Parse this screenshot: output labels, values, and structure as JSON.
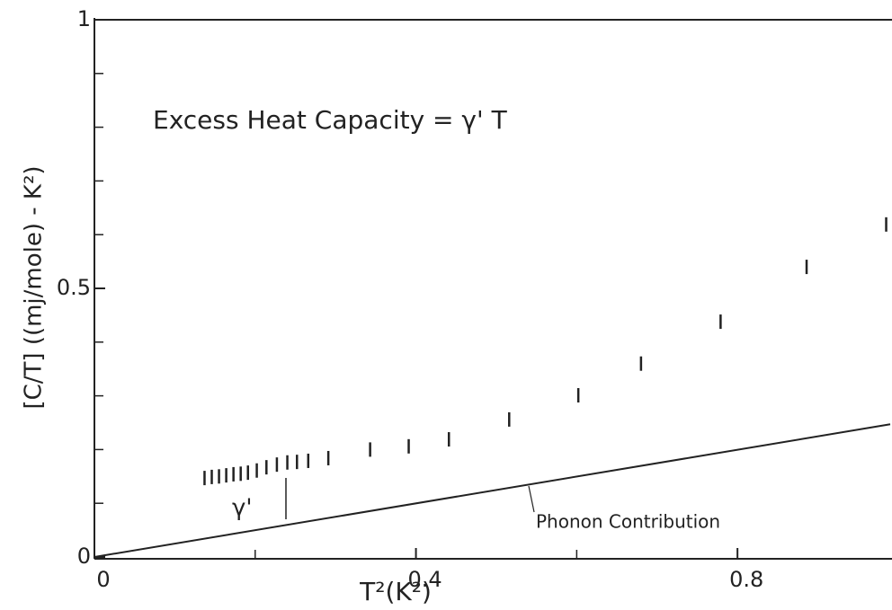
{
  "chart_data": {
    "type": "scatter",
    "xlabel": "T²(K²)",
    "ylabel": "[C/T] ((mj/mole) - K²)",
    "annotations": [
      "Excess Heat Capacity = γ' T",
      "γ'",
      "Phonon Contribution"
    ],
    "xlim": [
      0,
      0.99
    ],
    "ylim": [
      0,
      1
    ],
    "xticks": [
      0,
      0.4,
      0.8
    ],
    "x_minor_ticks": [
      0.2,
      0.6
    ],
    "yticks": [
      0,
      0.5,
      1
    ],
    "y_minor_ticks": [
      0.1,
      0.2,
      0.3,
      0.4,
      0.6,
      0.7,
      0.8,
      0.9
    ],
    "color": "#222222",
    "points": {
      "x": [
        0.137,
        0.146,
        0.155,
        0.164,
        0.173,
        0.182,
        0.191,
        0.202,
        0.214,
        0.227,
        0.24,
        0.252,
        0.266,
        0.291,
        0.343,
        0.391,
        0.441,
        0.516,
        0.602,
        0.68,
        0.779,
        0.886,
        0.985
      ],
      "y": [
        0.147,
        0.149,
        0.15,
        0.152,
        0.154,
        0.155,
        0.157,
        0.161,
        0.167,
        0.172,
        0.176,
        0.177,
        0.179,
        0.184,
        0.2,
        0.206,
        0.219,
        0.256,
        0.301,
        0.36,
        0.438,
        0.54,
        0.619
      ]
    },
    "line": {
      "x": [
        0,
        0.99
      ],
      "y": [
        0,
        0.247
      ]
    }
  }
}
